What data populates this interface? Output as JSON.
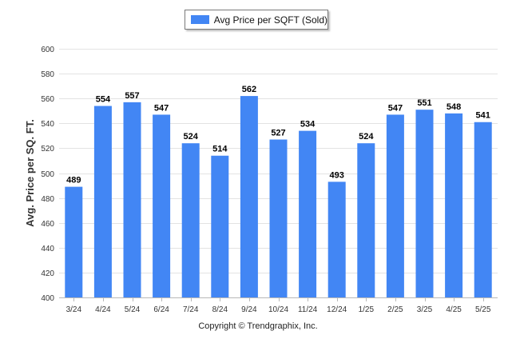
{
  "chart_data": {
    "type": "bar",
    "legend": "Avg Price per SQFT (Sold)",
    "legend_position": "top-center",
    "ylabel": "Avg. Price per SQ. FT.",
    "xlabel": "",
    "ylim": [
      400,
      600
    ],
    "yticks": [
      400,
      420,
      440,
      460,
      480,
      500,
      520,
      540,
      560,
      580,
      600
    ],
    "grid": true,
    "categories": [
      "3/24",
      "4/24",
      "5/24",
      "6/24",
      "7/24",
      "8/24",
      "9/24",
      "10/24",
      "11/24",
      "12/24",
      "1/25",
      "2/25",
      "3/25",
      "4/25",
      "5/25"
    ],
    "values": [
      489,
      554,
      557,
      547,
      524,
      514,
      562,
      527,
      534,
      493,
      524,
      547,
      551,
      548,
      541
    ],
    "bar_color": "#4286f4"
  },
  "footer": {
    "copyright": "Copyright © Trendgraphix, Inc."
  }
}
